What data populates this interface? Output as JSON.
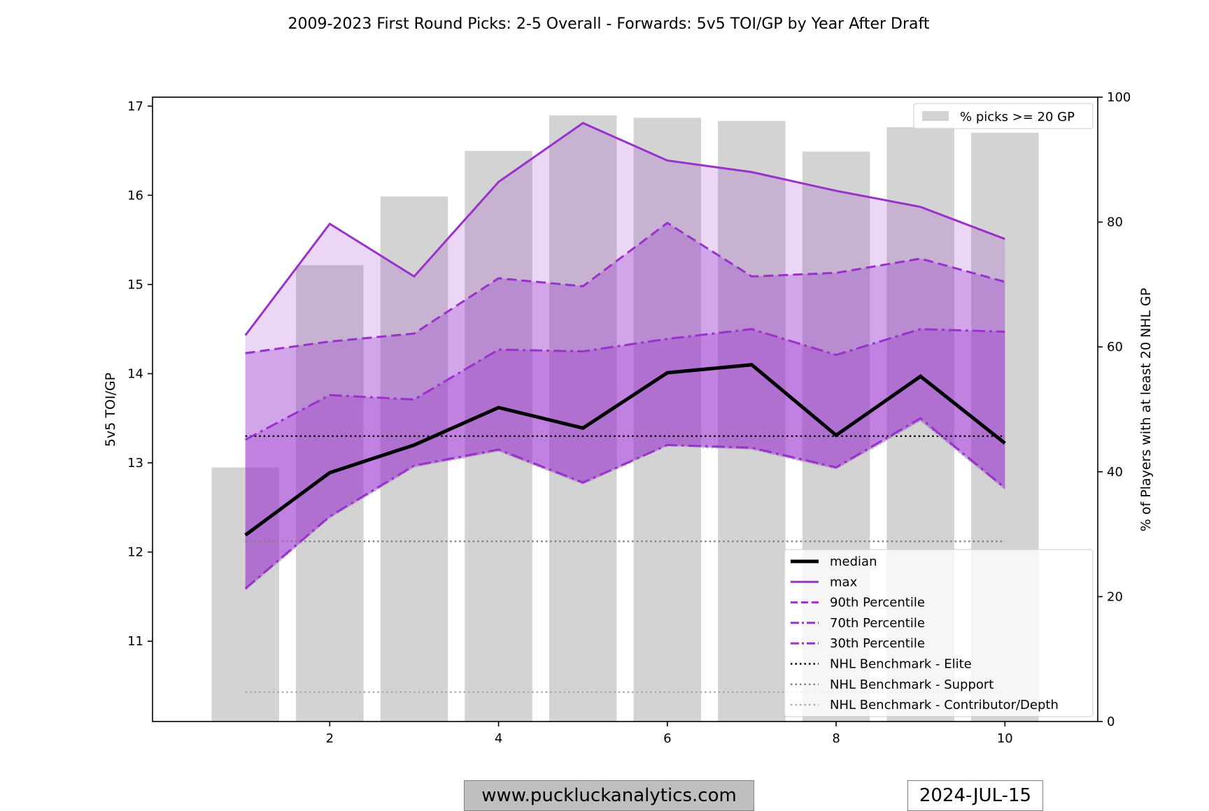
{
  "chart_data": {
    "type": "line",
    "title": "2009-2023 First Round Picks: 2-5 Overall - Forwards: 5v5 TOI/GP by Year After Draft",
    "ylabel": "5v5 TOI/GP",
    "y2label": "% of Players with at least 20 NHL GP",
    "xlabel": "",
    "xlim": [
      -0.1,
      11.1
    ],
    "ylim": [
      10.1,
      17.1
    ],
    "y2lim": [
      0,
      100
    ],
    "x_ticks": [
      2,
      4,
      6,
      8,
      10
    ],
    "y_ticks": [
      11,
      12,
      13,
      14,
      15,
      16,
      17
    ],
    "y2_ticks": [
      0,
      20,
      40,
      60,
      80,
      100
    ],
    "x": [
      1,
      2,
      3,
      4,
      5,
      6,
      7,
      8,
      9,
      10
    ],
    "bars": {
      "name": "% picks >= 20 GP",
      "color": "#d3d3d3",
      "values": [
        40.7,
        73.1,
        84.1,
        91.4,
        97.1,
        96.7,
        96.2,
        91.3,
        95.2,
        94.3
      ]
    },
    "series": [
      {
        "name": "median",
        "style": "solid",
        "color": "#000000",
        "values": [
          12.19,
          12.89,
          13.2,
          13.62,
          13.39,
          14.01,
          14.1,
          13.31,
          13.97,
          13.22
        ]
      },
      {
        "name": "max",
        "style": "solid",
        "color": "#9932cc",
        "values": [
          14.43,
          15.68,
          15.09,
          16.15,
          16.81,
          16.39,
          16.26,
          16.05,
          15.87,
          15.51
        ]
      },
      {
        "name": "90th Percentile",
        "style": "dashed",
        "color": "#9932cc",
        "values": [
          14.23,
          14.36,
          14.45,
          15.07,
          14.98,
          15.69,
          15.09,
          15.13,
          15.29,
          15.03
        ]
      },
      {
        "name": "70th Percentile",
        "style": "dashdot",
        "color": "#9932cc",
        "values": [
          13.26,
          13.76,
          13.71,
          14.27,
          14.25,
          14.39,
          14.5,
          14.21,
          14.5,
          14.47
        ]
      },
      {
        "name": "30th Percentile",
        "style": "dashdot",
        "color": "#9932cc",
        "values": [
          11.59,
          12.4,
          12.97,
          13.15,
          12.78,
          13.2,
          13.17,
          12.95,
          13.5,
          12.72
        ]
      }
    ],
    "min_series": {
      "style": "dotted",
      "color": "#c2c2c2",
      "values": [
        11.57,
        12.38,
        12.95,
        13.13,
        12.76,
        13.19,
        13.15,
        12.93,
        13.47,
        12.7
      ]
    },
    "benchmarks": [
      {
        "name": "NHL Benchmark - Elite",
        "value": 13.3,
        "color": "#000000"
      },
      {
        "name": "NHL Benchmark - Support",
        "value": 12.12,
        "color": "#808080"
      },
      {
        "name": "NHL Benchmark - Contributor/Depth",
        "value": 10.43,
        "color": "#a9a9a9"
      }
    ],
    "fill_color": "#9932cc",
    "grid": false,
    "legend_placement": "lower-right",
    "bar_legend_placement": "upper-right"
  },
  "footer": {
    "website": "www.puckluckanalytics.com",
    "date": "2024-JUL-15"
  }
}
